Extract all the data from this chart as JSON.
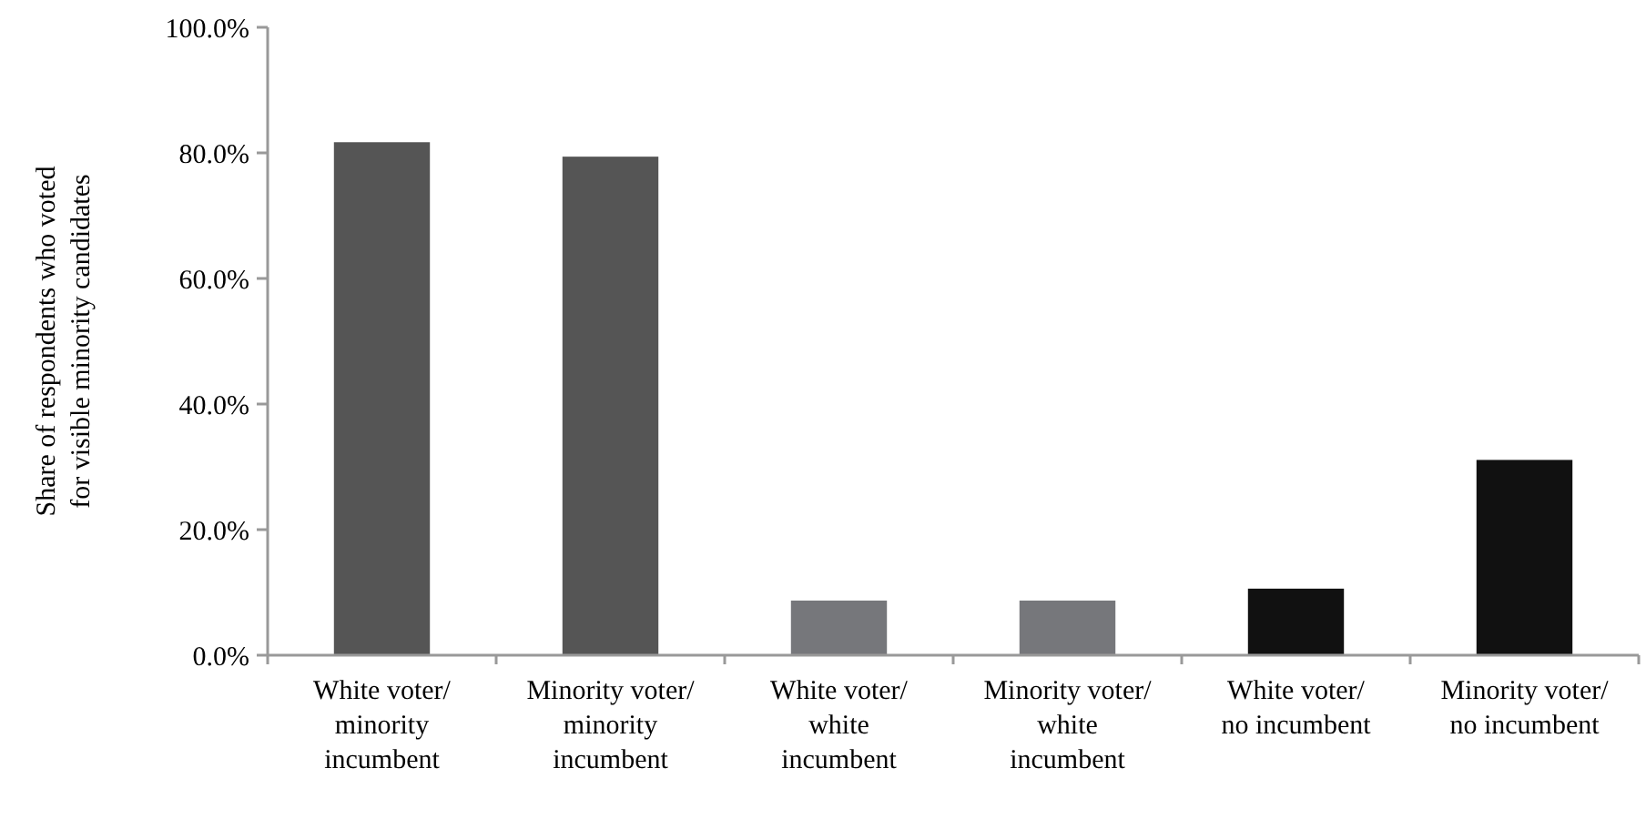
{
  "chart_data": {
    "type": "bar",
    "ylabel": "Share of respondents who voted for visible minority candidates",
    "categories": [
      "White voter/ minority incumbent",
      "Minority voter/ minority incumbent",
      "White voter/ white incumbent",
      "Minority voter/ white incumbent",
      "White voter/ no incumbent",
      "Minority voter/ no incumbent"
    ],
    "values": [
      81.7,
      79.4,
      8.7,
      8.7,
      10.6,
      31.1
    ],
    "colors": [
      "#555555",
      "#555555",
      "#76777b",
      "#76777b",
      "#111111",
      "#111111"
    ],
    "ylim": [
      0,
      100
    ],
    "yticks": [
      {
        "value": 0,
        "label": "0.0%"
      },
      {
        "value": 20,
        "label": "20.0%"
      },
      {
        "value": 40,
        "label": "40.0%"
      },
      {
        "value": 60,
        "label": "60.0%"
      },
      {
        "value": 80,
        "label": "80.0%"
      },
      {
        "value": 100,
        "label": "100.0%"
      }
    ],
    "grid": false
  }
}
